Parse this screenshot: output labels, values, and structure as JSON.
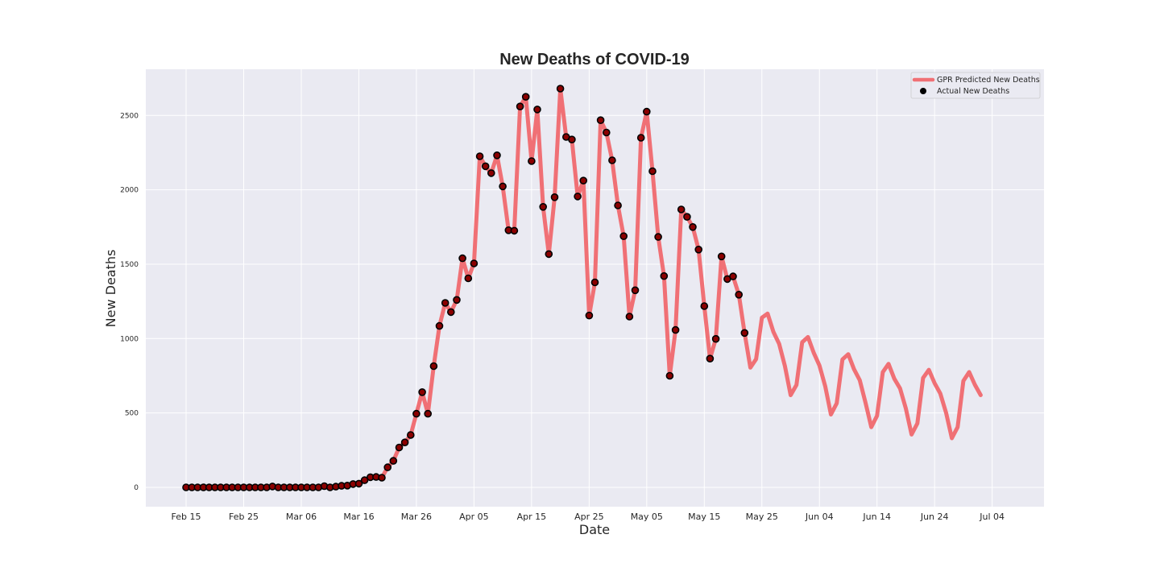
{
  "chart_data": {
    "type": "line",
    "title": "New Deaths of COVID-19",
    "xlabel": "Date",
    "ylabel": "New Deaths",
    "x_start": "2020-02-15",
    "x_ticks": [
      "Feb 15",
      "Feb 25",
      "Mar 06",
      "Mar 16",
      "Mar 26",
      "Apr 05",
      "Apr 15",
      "Apr 25",
      "May 05",
      "May 15",
      "May 25",
      "Jun 04",
      "Jun 14",
      "Jun 24",
      "Jul 04"
    ],
    "x_tick_dates": [
      "2020-02-15",
      "2020-02-25",
      "2020-03-06",
      "2020-03-16",
      "2020-03-26",
      "2020-04-05",
      "2020-04-15",
      "2020-04-25",
      "2020-05-05",
      "2020-05-15",
      "2020-05-25",
      "2020-06-04",
      "2020-06-14",
      "2020-06-24",
      "2020-07-04"
    ],
    "xlim": [
      "2020-02-08",
      "2020-07-13"
    ],
    "y_ticks": [
      0,
      500,
      1000,
      1500,
      2000,
      2500
    ],
    "ylim": [
      -130,
      2810
    ],
    "grid": true,
    "legend_position": "top-right",
    "series": [
      {
        "name": "GPR Predicted New Deaths",
        "kind": "line",
        "color": "#f07075",
        "values": [
          0,
          0,
          0,
          0,
          0,
          0,
          0,
          0,
          0,
          0,
          0,
          0,
          0,
          0,
          0,
          6,
          0,
          0,
          0,
          0,
          0,
          0,
          0,
          0,
          8,
          0,
          5,
          10,
          12,
          22,
          25,
          48,
          68,
          70,
          65,
          135,
          178,
          268,
          302,
          352,
          495,
          640,
          495,
          815,
          1085,
          1240,
          1178,
          1260,
          1540,
          1405,
          1505,
          2225,
          2158,
          2112,
          2232,
          2023,
          1728,
          1725,
          2560,
          2625,
          2193,
          2540,
          1885,
          1568,
          1950,
          2680,
          2355,
          2338,
          1955,
          2062,
          1155,
          1378,
          2468,
          2385,
          2198,
          1895,
          1688,
          1148,
          1325,
          2350,
          2525,
          2125,
          1683,
          1420,
          750,
          1058,
          1868,
          1818,
          1750,
          1598,
          1218,
          865,
          998,
          1552,
          1400,
          1418,
          1295,
          1038,
          805,
          862,
          1140,
          1168,
          1045,
          965,
          815,
          620,
          688,
          975,
          1010,
          905,
          818,
          680,
          490,
          565,
          860,
          895,
          795,
          720,
          570,
          405,
          480,
          775,
          830,
          730,
          665,
          530,
          355,
          430,
          735,
          790,
          700,
          630,
          500,
          330,
          405,
          715,
          775,
          690,
          620
        ]
      },
      {
        "name": "Actual New Deaths",
        "kind": "scatter",
        "color": "#000000",
        "fill": "#8b0000",
        "values": [
          0,
          0,
          0,
          0,
          0,
          0,
          0,
          0,
          0,
          0,
          0,
          0,
          0,
          0,
          0,
          6,
          0,
          0,
          0,
          0,
          0,
          0,
          0,
          0,
          8,
          0,
          5,
          10,
          12,
          22,
          25,
          48,
          68,
          70,
          65,
          135,
          178,
          268,
          302,
          352,
          495,
          640,
          495,
          815,
          1085,
          1240,
          1178,
          1260,
          1540,
          1405,
          1505,
          2225,
          2158,
          2112,
          2232,
          2023,
          1728,
          1725,
          2560,
          2625,
          2193,
          2540,
          1885,
          1568,
          1950,
          2680,
          2355,
          2338,
          1955,
          2062,
          1155,
          1378,
          2468,
          2385,
          2198,
          1895,
          1688,
          1148,
          1325,
          2350,
          2525,
          2125,
          1683,
          1420,
          750,
          1058,
          1868,
          1818,
          1750,
          1598,
          1218,
          865,
          998,
          1552,
          1400,
          1418,
          1295,
          1038
        ]
      }
    ]
  }
}
